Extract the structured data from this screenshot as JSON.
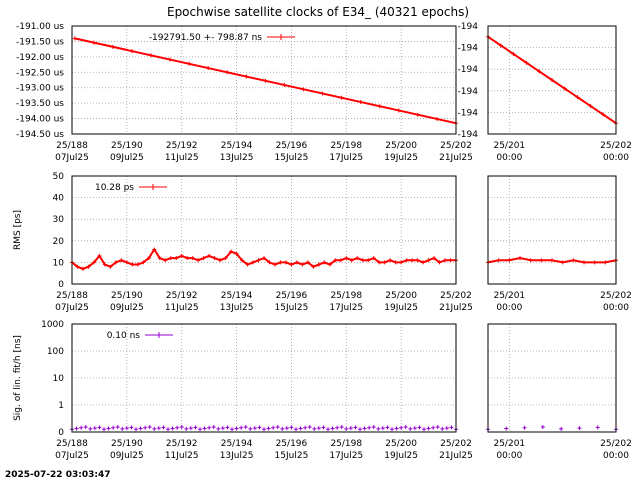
{
  "title": "Epochwise satellite clocks of E34_ (40321 epochs)",
  "timestamp": "2025-07-22 03:03:47",
  "colors": {
    "clock": "#ff0000",
    "rms": "#ff0000",
    "fit": "#9400d3",
    "grid": "#a0a0a0"
  },
  "chart_data": [
    {
      "type": "line",
      "panel": "clock-main",
      "ylabel": "",
      "ylim": [
        -194.5,
        -191.0
      ],
      "xlim_day": [
        188,
        202
      ],
      "x_ticks": [
        [
          "25/188",
          "07Jul25"
        ],
        [
          "25/190",
          "09Jul25"
        ],
        [
          "25/192",
          "11Jul25"
        ],
        [
          "25/194",
          "13Jul25"
        ],
        [
          "25/196",
          "15Jul25"
        ],
        [
          "25/198",
          "17Jul25"
        ],
        [
          "25/200",
          "19Jul25"
        ],
        [
          "25/202",
          "21Jul25"
        ]
      ],
      "y_ticks": [
        "-191.00 us",
        "-191.50 us",
        "-192.00 us",
        "-192.50 us",
        "-193.00 us",
        "-193.50 us",
        "-194.00 us",
        "-194.50 us"
      ],
      "y_tick_values": [
        -191.0,
        -191.5,
        -192.0,
        -192.5,
        -193.0,
        -193.5,
        -194.0,
        -194.5
      ],
      "legend": "-192791.50 +-      798.87 ns",
      "series": [
        {
          "name": "-192791.50 +-      798.87 ns",
          "x_day": [
            188.1,
            202.0
          ],
          "y": [
            -191.4,
            -194.15
          ]
        }
      ]
    },
    {
      "type": "line",
      "panel": "clock-zoom",
      "ylim": [
        -194.2,
        -194.0
      ],
      "xlim_day": [
        200.8,
        202.0
      ],
      "x_ticks": [
        [
          "25/201",
          "00:00"
        ],
        [
          "25/202",
          "00:00"
        ]
      ],
      "y_ticks": [
        "-194",
        "-194",
        "-194",
        "-194",
        "-194",
        "-194"
      ],
      "series": [
        {
          "x_day": [
            200.8,
            202.0
          ],
          "y": [
            -194.02,
            -194.18
          ]
        }
      ]
    },
    {
      "type": "line",
      "panel": "rms-main",
      "ylabel": "RMS [ps]",
      "ylim": [
        0,
        50
      ],
      "xlim_day": [
        188,
        202
      ],
      "x_ticks": [
        [
          "25/188",
          "07Jul25"
        ],
        [
          "25/190",
          "09Jul25"
        ],
        [
          "25/192",
          "11Jul25"
        ],
        [
          "25/194",
          "13Jul25"
        ],
        [
          "25/196",
          "15Jul25"
        ],
        [
          "25/198",
          "17Jul25"
        ],
        [
          "25/200",
          "19Jul25"
        ],
        [
          "25/202",
          "21Jul25"
        ]
      ],
      "y_ticks": [
        "0",
        "10",
        "20",
        "30",
        "40",
        "50"
      ],
      "y_tick_values": [
        0,
        10,
        20,
        30,
        40,
        50
      ],
      "legend": "10.28 ps",
      "series": [
        {
          "name": "10.28 ps",
          "x_day": [
            188.0,
            188.2,
            188.4,
            188.6,
            188.8,
            189.0,
            189.2,
            189.4,
            189.6,
            189.8,
            190.0,
            190.2,
            190.4,
            190.6,
            190.8,
            191.0,
            191.2,
            191.4,
            191.6,
            191.8,
            192.0,
            192.2,
            192.4,
            192.6,
            192.8,
            193.0,
            193.2,
            193.4,
            193.6,
            193.8,
            194.0,
            194.2,
            194.4,
            194.6,
            194.8,
            195.0,
            195.2,
            195.4,
            195.6,
            195.8,
            196.0,
            196.2,
            196.4,
            196.6,
            196.8,
            197.0,
            197.2,
            197.4,
            197.6,
            197.8,
            198.0,
            198.2,
            198.4,
            198.6,
            198.8,
            199.0,
            199.2,
            199.4,
            199.6,
            199.8,
            200.0,
            200.2,
            200.4,
            200.6,
            200.8,
            201.0,
            201.2,
            201.4,
            201.6,
            201.8,
            202.0
          ],
          "y": [
            10,
            8,
            7,
            8,
            10,
            13,
            9,
            8,
            10,
            11,
            10,
            9,
            9,
            10,
            12,
            16,
            12,
            11,
            12,
            12,
            13,
            12,
            12,
            11,
            12,
            13,
            12,
            11,
            12,
            15,
            14,
            11,
            9,
            10,
            11,
            12,
            10,
            9,
            10,
            10,
            9,
            10,
            9,
            10,
            8,
            9,
            10,
            9,
            11,
            11,
            12,
            11,
            12,
            11,
            11,
            12,
            10,
            10,
            11,
            10,
            10,
            11,
            11,
            11,
            10,
            11,
            12,
            10,
            11,
            11,
            11
          ]
        }
      ]
    },
    {
      "type": "line",
      "panel": "rms-zoom",
      "ylim": [
        0,
        50
      ],
      "xlim_day": [
        200.8,
        202.0
      ],
      "x_ticks": [
        [
          "25/201",
          "00:00"
        ],
        [
          "25/202",
          "00:00"
        ]
      ],
      "series": [
        {
          "x_day": [
            200.8,
            200.9,
            201.0,
            201.1,
            201.2,
            201.3,
            201.4,
            201.5,
            201.6,
            201.7,
            201.8,
            201.9,
            202.0
          ],
          "y": [
            10,
            11,
            11,
            12,
            11,
            11,
            11,
            10,
            11,
            10,
            10,
            10,
            11
          ]
        }
      ]
    },
    {
      "type": "scatter",
      "panel": "fit-main",
      "ylabel": "Sig. of lin. fit/h [ns]",
      "yscale": "log",
      "ylim": [
        0,
        1000
      ],
      "xlim_day": [
        188,
        202
      ],
      "x_ticks": [
        [
          "25/188",
          "07Jul25"
        ],
        [
          "25/190",
          "09Jul25"
        ],
        [
          "25/192",
          "11Jul25"
        ],
        [
          "25/194",
          "13Jul25"
        ],
        [
          "25/196",
          "15Jul25"
        ],
        [
          "25/198",
          "17Jul25"
        ],
        [
          "25/200",
          "19Jul25"
        ],
        [
          "25/202",
          "21Jul25"
        ]
      ],
      "y_ticks": [
        "0",
        "1",
        "10",
        "100",
        "1000"
      ],
      "legend": "0.10 ns",
      "series": [
        {
          "name": "0.10 ns",
          "typical_value": 0.1
        }
      ]
    },
    {
      "type": "scatter",
      "panel": "fit-zoom",
      "yscale": "log",
      "ylim": [
        0,
        1000
      ],
      "xlim_day": [
        200.8,
        202.0
      ],
      "x_ticks": [
        [
          "25/201",
          "00:00"
        ],
        [
          "25/202",
          "00:00"
        ]
      ],
      "series": [
        {
          "typical_value": 0.1
        }
      ]
    }
  ]
}
